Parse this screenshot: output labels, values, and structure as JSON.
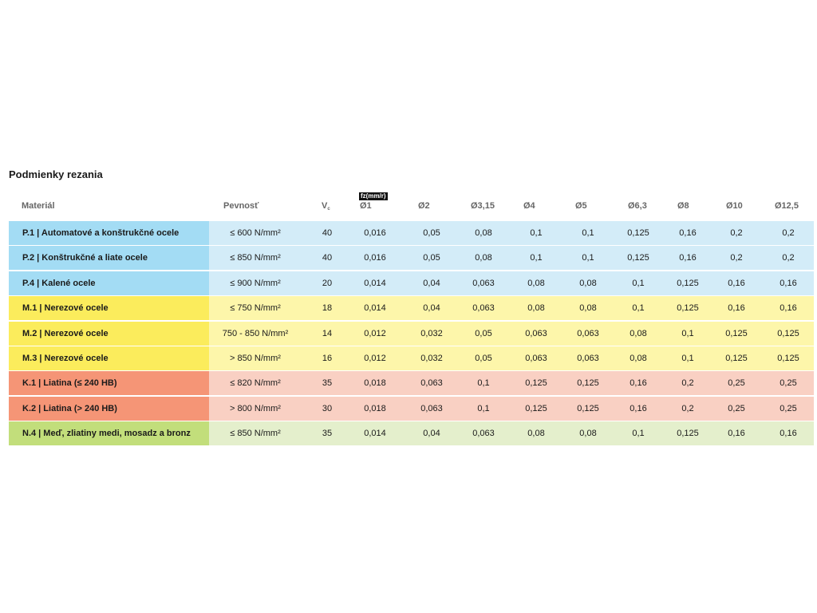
{
  "title": "Podmienky rezania",
  "headers": {
    "material": "Materiál",
    "strength": "Pevnosť",
    "vc": "V",
    "vc_sub": "c",
    "fz_label": "fz(mm/r)",
    "diameters": [
      "Ø1",
      "Ø2",
      "Ø3,15",
      "Ø4",
      "Ø5",
      "Ø6,3",
      "Ø8",
      "Ø10",
      "Ø12,5"
    ]
  },
  "colors": {
    "P": {
      "dark": "#a3dcf4",
      "light": "#d3ecf8"
    },
    "M": {
      "dark": "#fbec5c",
      "light": "#fdf6aa"
    },
    "K": {
      "dark": "#f59576",
      "light": "#f9d0c3"
    },
    "N": {
      "dark": "#c2de7b",
      "light": "#e4efcc"
    }
  },
  "rows": [
    {
      "group": "P",
      "material": "P.1 | Automatové a konštrukčné ocele",
      "strength": "≤ 600 N/mm²",
      "vc": "40",
      "fz": [
        "0,016",
        "0,05",
        "0,08",
        "0,1",
        "0,1",
        "0,125",
        "0,16",
        "0,2",
        "0,2"
      ]
    },
    {
      "group": "P",
      "material": "P.2 | Konštrukčné a liate ocele",
      "strength": "≤ 850 N/mm²",
      "vc": "40",
      "fz": [
        "0,016",
        "0,05",
        "0,08",
        "0,1",
        "0,1",
        "0,125",
        "0,16",
        "0,2",
        "0,2"
      ]
    },
    {
      "group": "P",
      "material": "P.4 | Kalené ocele",
      "strength": "≤ 900 N/mm²",
      "vc": "20",
      "fz": [
        "0,014",
        "0,04",
        "0,063",
        "0,08",
        "0,08",
        "0,1",
        "0,125",
        "0,16",
        "0,16"
      ]
    },
    {
      "group": "M",
      "material": "M.1 | Nerezové ocele",
      "strength": "≤ 750 N/mm²",
      "vc": "18",
      "fz": [
        "0,014",
        "0,04",
        "0,063",
        "0,08",
        "0,08",
        "0,1",
        "0,125",
        "0,16",
        "0,16"
      ]
    },
    {
      "group": "M",
      "material": "M.2 | Nerezové ocele",
      "strength": "750 - 850 N/mm²",
      "vc": "14",
      "fz": [
        "0,012",
        "0,032",
        "0,05",
        "0,063",
        "0,063",
        "0,08",
        "0,1",
        "0,125",
        "0,125"
      ]
    },
    {
      "group": "M",
      "material": "M.3 | Nerezové ocele",
      "strength": "> 850 N/mm²",
      "vc": "16",
      "fz": [
        "0,012",
        "0,032",
        "0,05",
        "0,063",
        "0,063",
        "0,08",
        "0,1",
        "0,125",
        "0,125"
      ]
    },
    {
      "group": "K",
      "material": "K.1 | Liatina (≤ 240 HB)",
      "strength": "≤ 820 N/mm²",
      "vc": "35",
      "fz": [
        "0,018",
        "0,063",
        "0,1",
        "0,125",
        "0,125",
        "0,16",
        "0,2",
        "0,25",
        "0,25"
      ]
    },
    {
      "group": "K",
      "material": "K.2 | Liatina (> 240 HB)",
      "strength": "> 800 N/mm²",
      "vc": "30",
      "fz": [
        "0,018",
        "0,063",
        "0,1",
        "0,125",
        "0,125",
        "0,16",
        "0,2",
        "0,25",
        "0,25"
      ]
    },
    {
      "group": "N",
      "material": "N.4 | Meď, zliatiny medi, mosadz a bronz",
      "strength": "≤ 850 N/mm²",
      "vc": "35",
      "fz": [
        "0,014",
        "0,04",
        "0,063",
        "0,08",
        "0,08",
        "0,1",
        "0,125",
        "0,16",
        "0,16"
      ]
    }
  ]
}
